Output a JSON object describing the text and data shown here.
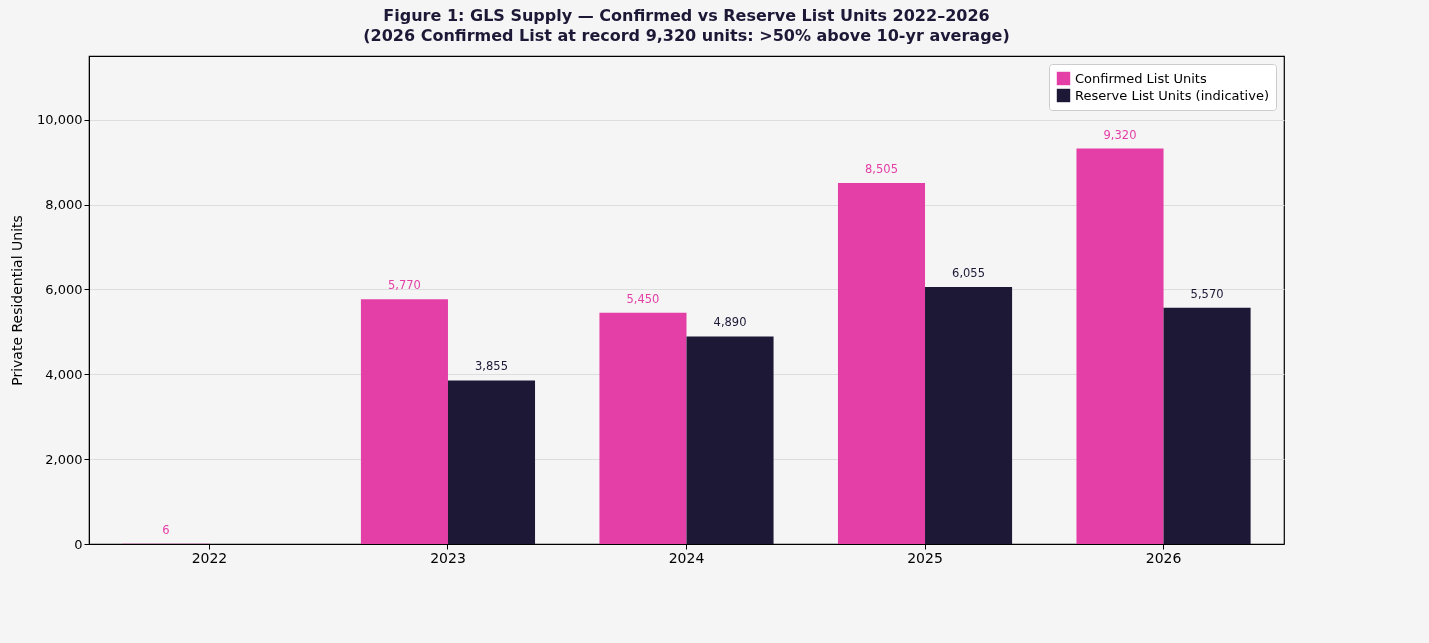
{
  "chart_data": {
    "type": "bar",
    "title": "Figure 1: GLS Supply — Confirmed vs Reserve List Units 2022–2026",
    "subtitle": "(2026 Confirmed List at record 9,320 units: >50% above 10-yr average)",
    "ylabel": "Private Residential Units",
    "categories": [
      "2022",
      "2023",
      "2024",
      "2025",
      "2026"
    ],
    "series": [
      {
        "name": "Confirmed List Units",
        "color": "#e43fa6",
        "values": [
          6,
          5770,
          5450,
          8505,
          9320
        ],
        "value_labels": [
          "6",
          "5,770",
          "5,450",
          "8,505",
          "9,320"
        ]
      },
      {
        "name": "Reserve List Units (indicative)",
        "color": "#1c1836",
        "values": [
          null,
          3855,
          4890,
          6055,
          5570
        ],
        "value_labels": [
          null,
          "3,855",
          "4,890",
          "6,055",
          "5,570"
        ]
      }
    ],
    "ylim": [
      0,
      11500
    ],
    "yticks": [
      0,
      {
        "value": 2000,
        "label": "2,000"
      },
      {
        "value": 4000,
        "label": "4,000"
      },
      {
        "value": 6000,
        "label": "6,000"
      },
      {
        "value": 8000,
        "label": "8,000"
      },
      {
        "value": 10000,
        "label": "10,000"
      }
    ],
    "grid": "y",
    "legend": "top right"
  }
}
